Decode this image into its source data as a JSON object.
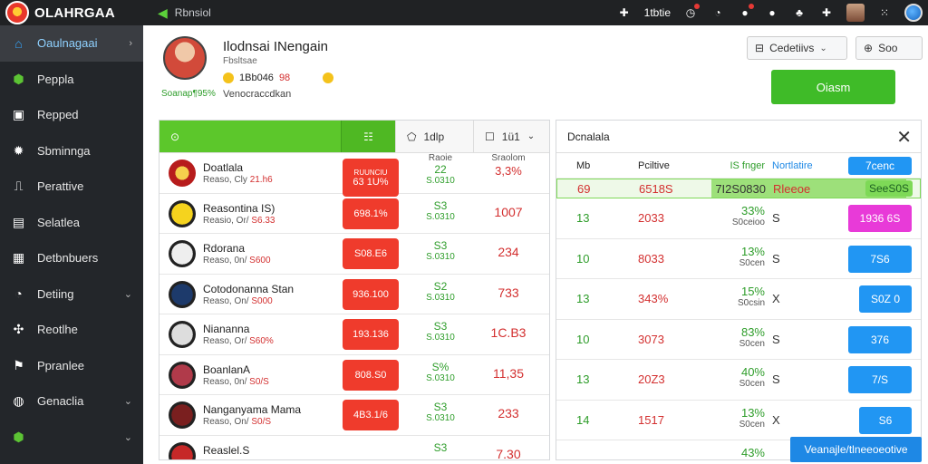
{
  "app": {
    "name": "OLAHRGAA",
    "breadcrumb": "Rbnsiol"
  },
  "topbar": {
    "status_text": "1tbtie"
  },
  "sidebar": {
    "items": [
      {
        "label": "Oaulnagaai",
        "icon": "home-icon",
        "active": true,
        "chevron": "›"
      },
      {
        "label": "Peppla",
        "icon": "cube-icon"
      },
      {
        "label": "Repped",
        "icon": "briefcase-icon"
      },
      {
        "label": "Sbminnga",
        "icon": "ball-icon"
      },
      {
        "label": "Perattive",
        "icon": "chart-icon"
      },
      {
        "label": "Selatlea",
        "icon": "clipboard-icon"
      },
      {
        "label": "Detbnbuers",
        "icon": "grid-icon"
      },
      {
        "label": "Detiing",
        "icon": "gauge-icon",
        "chevron": "⌄"
      },
      {
        "label": "Reotlhe",
        "icon": "cluster-icon"
      },
      {
        "label": "Ppranlee",
        "icon": "flag-icon"
      },
      {
        "label": "Genaclia",
        "icon": "globe-icon",
        "chevron": "⌄"
      },
      {
        "label": "",
        "icon": "shield-icon",
        "chevron": "⌄"
      }
    ]
  },
  "profile": {
    "name": "Ilodnsai INengain",
    "subtitle": "Fbsltsae",
    "coins": "1Bb046",
    "coins_red": "98",
    "status": "Soanap¶95%",
    "role": "Venocraccdkan"
  },
  "controls": {
    "dropdown_label": "Cedetiivs",
    "search_label": "Soo",
    "primary_button": "Oiasm"
  },
  "left_panel": {
    "tabs": {
      "tab1": "",
      "tab2": "1dlp",
      "tab3": "1ü1"
    },
    "col_heads": {
      "odds": "Raoie",
      "num": "Sraolom"
    },
    "header_row": {
      "team": "Doatlala",
      "sub": "Reaso, Cly",
      "sub_red": "21.h6",
      "odds_top": "RUUNCIU",
      "odds": "63 1U%",
      "mid": "22",
      "mid_sub": "S.0310",
      "val": "3,3%"
    },
    "rows": [
      {
        "team": "Reasontina IS)",
        "sub": "Reasio, Or/",
        "sub_red": "S6.33",
        "odds": "698.1%",
        "mid": "S3",
        "mid_sub": "S.0310",
        "val": "1007",
        "crest": "#f5d31e"
      },
      {
        "team": "Rdorana",
        "sub": "Reaso, 0n/",
        "sub_red": "S600",
        "odds": "S08.E6",
        "mid": "S3",
        "mid_sub": "S.0310",
        "val": "234",
        "crest": "#eeeeee"
      },
      {
        "team": "Cotodonanna Stan",
        "sub": "Reaso, On/",
        "sub_red": "S000",
        "odds": "936.100",
        "mid": "S2",
        "mid_sub": "S.0310",
        "val": "733",
        "crest": "#1d3a6b"
      },
      {
        "team": "Niananna",
        "sub": "Reaso, Or/",
        "sub_red": "S60%",
        "odds": "193.136",
        "mid": "S3",
        "mid_sub": "S.0310",
        "val": "1C.B3",
        "crest": "#dddddd"
      },
      {
        "team": "BoanlanA",
        "sub": "Reaso, 0n/",
        "sub_red": "S0/S",
        "odds": "808.S0",
        "mid": "S%",
        "mid_sub": "S.0310",
        "val": "11,35",
        "crest": "#b03a4a"
      },
      {
        "team": "Nanganyama Mama",
        "sub": "Reaso, On/",
        "sub_red": "S0/S",
        "odds": "4B3.1/6",
        "mid": "S3",
        "mid_sub": "S.0310",
        "val": "233",
        "crest": "#7a1f1f"
      },
      {
        "team": "Reaslel.S",
        "sub": "",
        "sub_red": "",
        "odds": "",
        "mid": "S3",
        "mid_sub": "",
        "val": "7.30",
        "crest": "#c62828"
      }
    ]
  },
  "right_panel": {
    "title": "Dcnalala",
    "col_heads": {
      "c1": "Mb",
      "c2": "Pciltive",
      "c3": "IS fnger",
      "c4": "Nortlatire",
      "btn": "7cenc"
    },
    "highlight": {
      "c1": "69",
      "c2": "6518S",
      "c3": "7I2S0830",
      "c4": "Rleeoe",
      "btn": "SeeS0S"
    },
    "rows": [
      {
        "c1": "13",
        "c2": "2033",
        "c3": "33%",
        "c3_sub": "S0ceioo",
        "c4": "S",
        "btn": "1936 6S",
        "color": "#e83ad8",
        "wide": true
      },
      {
        "c1": "10",
        "c2": "8033",
        "c3": "13%",
        "c3_sub": "S0cen",
        "c4": "S",
        "btn": "7S6",
        "color": "#2196f3",
        "wide": true
      },
      {
        "c1": "13",
        "c2": "343%",
        "c3": "15%",
        "c3_sub": "S0csin",
        "c4": "X",
        "btn": "S0Z 0",
        "color": "#2196f3",
        "wide": false
      },
      {
        "c1": "10",
        "c2": "3073",
        "c3": "83%",
        "c3_sub": "S0cen",
        "c4": "S",
        "btn": "376",
        "color": "#2196f3",
        "wide": true
      },
      {
        "c1": "13",
        "c2": "20Z3",
        "c3": "40%",
        "c3_sub": "S0cen",
        "c4": "S",
        "btn": "7/S",
        "color": "#2196f3",
        "wide": true
      },
      {
        "c1": "14",
        "c2": "1517",
        "c3": "13%",
        "c3_sub": "S0cen",
        "c4": "X",
        "btn": "S6",
        "color": "#2196f3",
        "wide": false
      },
      {
        "c1": "",
        "c2": "",
        "c3": "43%",
        "c3_sub": "",
        "c4": "",
        "btn": "",
        "color": "#2196f3",
        "wide": false
      }
    ]
  },
  "cta": "Veanajle/tlneeoeotive"
}
